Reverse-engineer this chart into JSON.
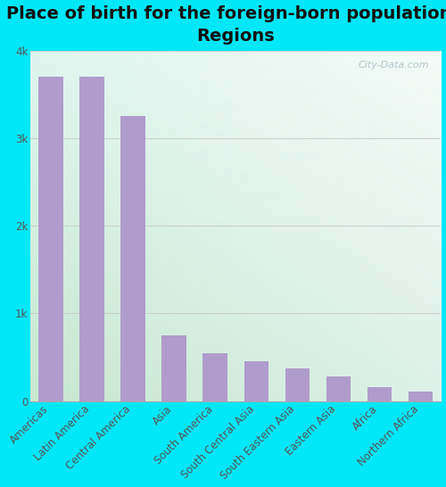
{
  "title": "Place of birth for the foreign-born population -\nRegions",
  "categories": [
    "Americas",
    "Latin America",
    "Central America",
    "Asia",
    "South America",
    "South Central Asia",
    "South Eastern Asia",
    "Eastern Asia",
    "Africa",
    "Northern Africa"
  ],
  "values": [
    3700,
    3700,
    3250,
    750,
    550,
    450,
    370,
    280,
    160,
    110
  ],
  "bar_color": "#b09ccc",
  "background_outer": "#00e8f8",
  "ylim": [
    0,
    4000
  ],
  "yticks": [
    0,
    1000,
    2000,
    3000,
    4000
  ],
  "ytick_labels": [
    "0",
    "1k",
    "2k",
    "3k",
    "4k"
  ],
  "grid_color": "#cccccc",
  "title_fontsize": 14,
  "tick_fontsize": 8.5,
  "watermark": "City-Data.com",
  "grad_top_left": "#e0f5ef",
  "grad_top_right": "#f5fbf8",
  "grad_bottom_left": "#c8e8d0",
  "grad_bottom_right": "#ddf0e8"
}
